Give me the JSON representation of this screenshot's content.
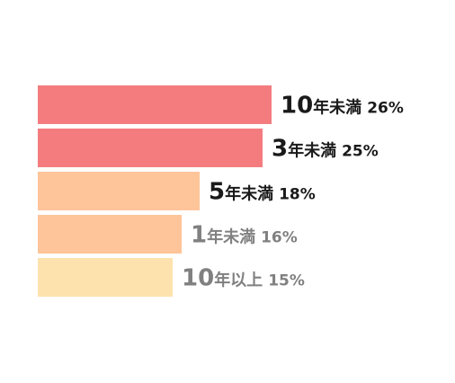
{
  "chart_data": {
    "type": "bar",
    "orientation": "horizontal",
    "categories": [
      "10年未満",
      "3年未満",
      "5年未満",
      "1年未満",
      "10年以上"
    ],
    "label_numbers": [
      "10",
      "3",
      "5",
      "1",
      "10"
    ],
    "label_units": [
      "年未満",
      "年未満",
      "年未満",
      "年未満",
      "年以上"
    ],
    "values": [
      26,
      25,
      18,
      16,
      15
    ],
    "value_labels": [
      "26%",
      "25%",
      "18%",
      "16%",
      "15%"
    ],
    "xlim": [
      0,
      26
    ],
    "bar_colors": [
      "#f47c7f",
      "#f47c7f",
      "#fec49a",
      "#fec49a",
      "#fde2ad"
    ],
    "label_colors": [
      "#1a1a1a",
      "#1a1a1a",
      "#1a1a1a",
      "#808080",
      "#808080"
    ],
    "grid": false,
    "legend": "none"
  }
}
